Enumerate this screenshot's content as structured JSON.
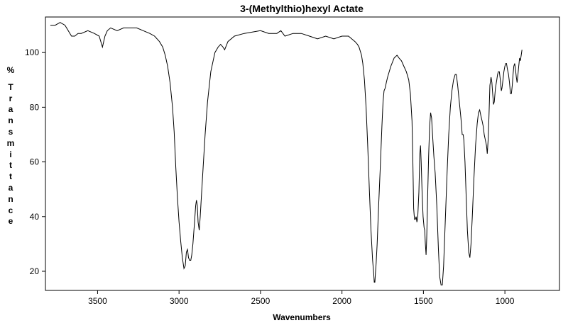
{
  "chart_data": {
    "type": "line",
    "title": "3-(Methylthio)hexyl Actate",
    "xlabel": "Wavenumbers",
    "ylabel": "% Transmittance",
    "xlim": [
      3820,
      665
    ],
    "ylim": [
      13,
      113
    ],
    "x_reversed": true,
    "grid": false,
    "xticks": [
      3500,
      3000,
      2500,
      2000,
      1500,
      1000
    ],
    "yticks": [
      20,
      40,
      60,
      80,
      100
    ],
    "series": [
      {
        "values": [
          [
            3790,
            110
          ],
          [
            3760,
            110
          ],
          [
            3730,
            111
          ],
          [
            3700,
            110
          ],
          [
            3680,
            108
          ],
          [
            3660,
            106
          ],
          [
            3640,
            106
          ],
          [
            3620,
            107
          ],
          [
            3600,
            107
          ],
          [
            3560,
            108
          ],
          [
            3520,
            107
          ],
          [
            3490,
            106
          ],
          [
            3470,
            102
          ],
          [
            3455,
            106
          ],
          [
            3440,
            108
          ],
          [
            3420,
            109
          ],
          [
            3380,
            108
          ],
          [
            3340,
            109
          ],
          [
            3300,
            109
          ],
          [
            3260,
            109
          ],
          [
            3220,
            108
          ],
          [
            3180,
            107
          ],
          [
            3150,
            106
          ],
          [
            3120,
            104
          ],
          [
            3100,
            102
          ],
          [
            3085,
            99
          ],
          [
            3070,
            95
          ],
          [
            3055,
            89
          ],
          [
            3040,
            80
          ],
          [
            3030,
            71
          ],
          [
            3020,
            58
          ],
          [
            3010,
            47
          ],
          [
            3000,
            38
          ],
          [
            2990,
            31
          ],
          [
            2980,
            25
          ],
          [
            2970,
            21
          ],
          [
            2962,
            22
          ],
          [
            2955,
            27
          ],
          [
            2948,
            28
          ],
          [
            2942,
            25
          ],
          [
            2935,
            24
          ],
          [
            2928,
            24
          ],
          [
            2922,
            26
          ],
          [
            2915,
            30
          ],
          [
            2905,
            38
          ],
          [
            2898,
            44
          ],
          [
            2893,
            46
          ],
          [
            2888,
            44
          ],
          [
            2883,
            38
          ],
          [
            2876,
            35
          ],
          [
            2870,
            40
          ],
          [
            2862,
            48
          ],
          [
            2852,
            58
          ],
          [
            2840,
            70
          ],
          [
            2825,
            82
          ],
          [
            2805,
            93
          ],
          [
            2780,
            100
          ],
          [
            2760,
            102
          ],
          [
            2745,
            103
          ],
          [
            2730,
            102
          ],
          [
            2720,
            101
          ],
          [
            2700,
            104
          ],
          [
            2660,
            106
          ],
          [
            2600,
            107
          ],
          [
            2500,
            108
          ],
          [
            2450,
            107
          ],
          [
            2400,
            107
          ],
          [
            2375,
            108
          ],
          [
            2350,
            106
          ],
          [
            2300,
            107
          ],
          [
            2250,
            107
          ],
          [
            2200,
            106
          ],
          [
            2150,
            105
          ],
          [
            2100,
            106
          ],
          [
            2050,
            105
          ],
          [
            2000,
            106
          ],
          [
            1960,
            106
          ],
          [
            1940,
            105
          ],
          [
            1920,
            104
          ],
          [
            1905,
            103
          ],
          [
            1895,
            102
          ],
          [
            1880,
            99
          ],
          [
            1872,
            96
          ],
          [
            1862,
            90
          ],
          [
            1852,
            80
          ],
          [
            1842,
            66
          ],
          [
            1832,
            50
          ],
          [
            1822,
            35
          ],
          [
            1812,
            24
          ],
          [
            1805,
            19
          ],
          [
            1802,
            16
          ],
          [
            1798,
            16
          ],
          [
            1795,
            19
          ],
          [
            1790,
            23
          ],
          [
            1784,
            30
          ],
          [
            1775,
            44
          ],
          [
            1765,
            58
          ],
          [
            1755,
            73
          ],
          [
            1748,
            82
          ],
          [
            1742,
            86
          ],
          [
            1735,
            87
          ],
          [
            1728,
            89
          ],
          [
            1720,
            91
          ],
          [
            1700,
            95
          ],
          [
            1680,
            98
          ],
          [
            1662,
            99
          ],
          [
            1650,
            98
          ],
          [
            1635,
            97
          ],
          [
            1620,
            95
          ],
          [
            1605,
            93
          ],
          [
            1590,
            90
          ],
          [
            1580,
            85
          ],
          [
            1570,
            75
          ],
          [
            1565,
            60
          ],
          [
            1560,
            43
          ],
          [
            1555,
            39
          ],
          [
            1550,
            39
          ],
          [
            1545,
            40
          ],
          [
            1540,
            38
          ],
          [
            1535,
            40
          ],
          [
            1528,
            49
          ],
          [
            1522,
            63
          ],
          [
            1518,
            66
          ],
          [
            1514,
            60
          ],
          [
            1508,
            48
          ],
          [
            1502,
            40
          ],
          [
            1496,
            36
          ],
          [
            1492,
            35
          ],
          [
            1488,
            30
          ],
          [
            1484,
            26
          ],
          [
            1480,
            32
          ],
          [
            1475,
            45
          ],
          [
            1468,
            62
          ],
          [
            1462,
            73
          ],
          [
            1456,
            78
          ],
          [
            1450,
            76
          ],
          [
            1444,
            70
          ],
          [
            1436,
            62
          ],
          [
            1428,
            56
          ],
          [
            1418,
            44
          ],
          [
            1408,
            28
          ],
          [
            1400,
            18
          ],
          [
            1392,
            15
          ],
          [
            1384,
            15
          ],
          [
            1376,
            22
          ],
          [
            1366,
            38
          ],
          [
            1355,
            56
          ],
          [
            1345,
            70
          ],
          [
            1335,
            80
          ],
          [
            1325,
            86
          ],
          [
            1315,
            90
          ],
          [
            1305,
            92
          ],
          [
            1298,
            92
          ],
          [
            1290,
            88
          ],
          [
            1280,
            82
          ],
          [
            1270,
            76
          ],
          [
            1262,
            70
          ],
          [
            1256,
            70
          ],
          [
            1252,
            68
          ],
          [
            1245,
            60
          ],
          [
            1238,
            48
          ],
          [
            1230,
            35
          ],
          [
            1222,
            27
          ],
          [
            1215,
            25
          ],
          [
            1208,
            30
          ],
          [
            1200,
            40
          ],
          [
            1190,
            54
          ],
          [
            1180,
            66
          ],
          [
            1170,
            74
          ],
          [
            1162,
            78
          ],
          [
            1155,
            79
          ],
          [
            1148,
            77
          ],
          [
            1140,
            75
          ],
          [
            1133,
            73
          ],
          [
            1127,
            70
          ],
          [
            1120,
            68
          ],
          [
            1113,
            66
          ],
          [
            1108,
            63
          ],
          [
            1103,
            68
          ],
          [
            1098,
            76
          ],
          [
            1092,
            88
          ],
          [
            1085,
            91
          ],
          [
            1080,
            89
          ],
          [
            1075,
            85
          ],
          [
            1070,
            81
          ],
          [
            1065,
            82
          ],
          [
            1058,
            87
          ],
          [
            1050,
            90
          ],
          [
            1045,
            92
          ],
          [
            1040,
            93
          ],
          [
            1034,
            93
          ],
          [
            1028,
            90
          ],
          [
            1022,
            86
          ],
          [
            1018,
            87
          ],
          [
            1012,
            90
          ],
          [
            1006,
            93
          ],
          [
            1000,
            95
          ],
          [
            995,
            96
          ],
          [
            990,
            96
          ],
          [
            985,
            94
          ],
          [
            978,
            92
          ],
          [
            972,
            89
          ],
          [
            966,
            85
          ],
          [
            960,
            85
          ],
          [
            955,
            88
          ],
          [
            950,
            92
          ],
          [
            945,
            95
          ],
          [
            940,
            96
          ],
          [
            935,
            94
          ],
          [
            930,
            91
          ],
          [
            925,
            89
          ],
          [
            920,
            92
          ],
          [
            915,
            95
          ],
          [
            910,
            98
          ],
          [
            905,
            97
          ],
          [
            900,
            99
          ],
          [
            895,
            101
          ]
        ]
      }
    ]
  }
}
